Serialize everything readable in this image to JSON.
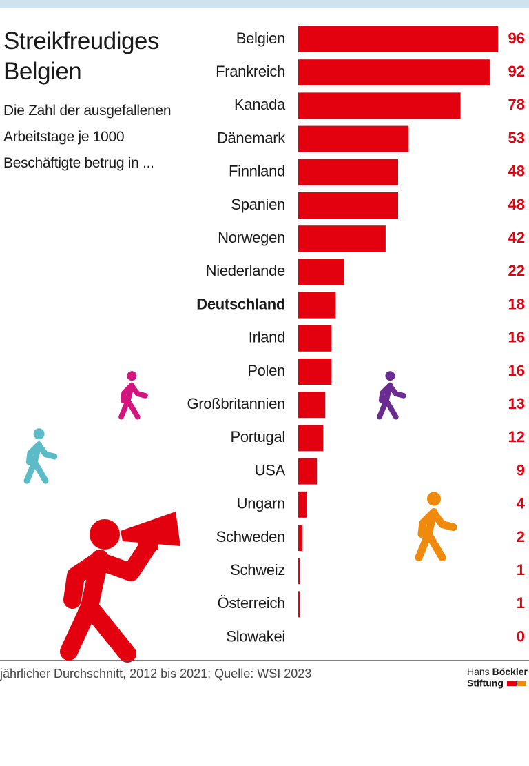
{
  "chart_data": {
    "type": "bar",
    "orientation": "horizontal",
    "title": "Streikfreudiges Belgien",
    "subtitle": "Die Zahl der ausgefallenen Arbeitstage je 1000 Beschäftigte betrug in ...",
    "categories": [
      "Belgien",
      "Frankreich",
      "Kanada",
      "Dänemark",
      "Finnland",
      "Spanien",
      "Norwegen",
      "Niederlande",
      "Deutschland",
      "Irland",
      "Polen",
      "Großbritannien",
      "Portugal",
      "USA",
      "Ungarn",
      "Schweden",
      "Schweiz",
      "Österreich",
      "Slowakei"
    ],
    "values": [
      96,
      92,
      78,
      53,
      48,
      48,
      42,
      22,
      18,
      16,
      16,
      13,
      12,
      9,
      4,
      2,
      1,
      1,
      0
    ],
    "color": "#e3000f",
    "source": "jährlicher Durchschnitt, 2012 bis 2021; Quelle: WSI 2023",
    "logo": {
      "line1": "Hans",
      "line1_bold": "Böckler",
      "line2": "Stiftung"
    }
  }
}
